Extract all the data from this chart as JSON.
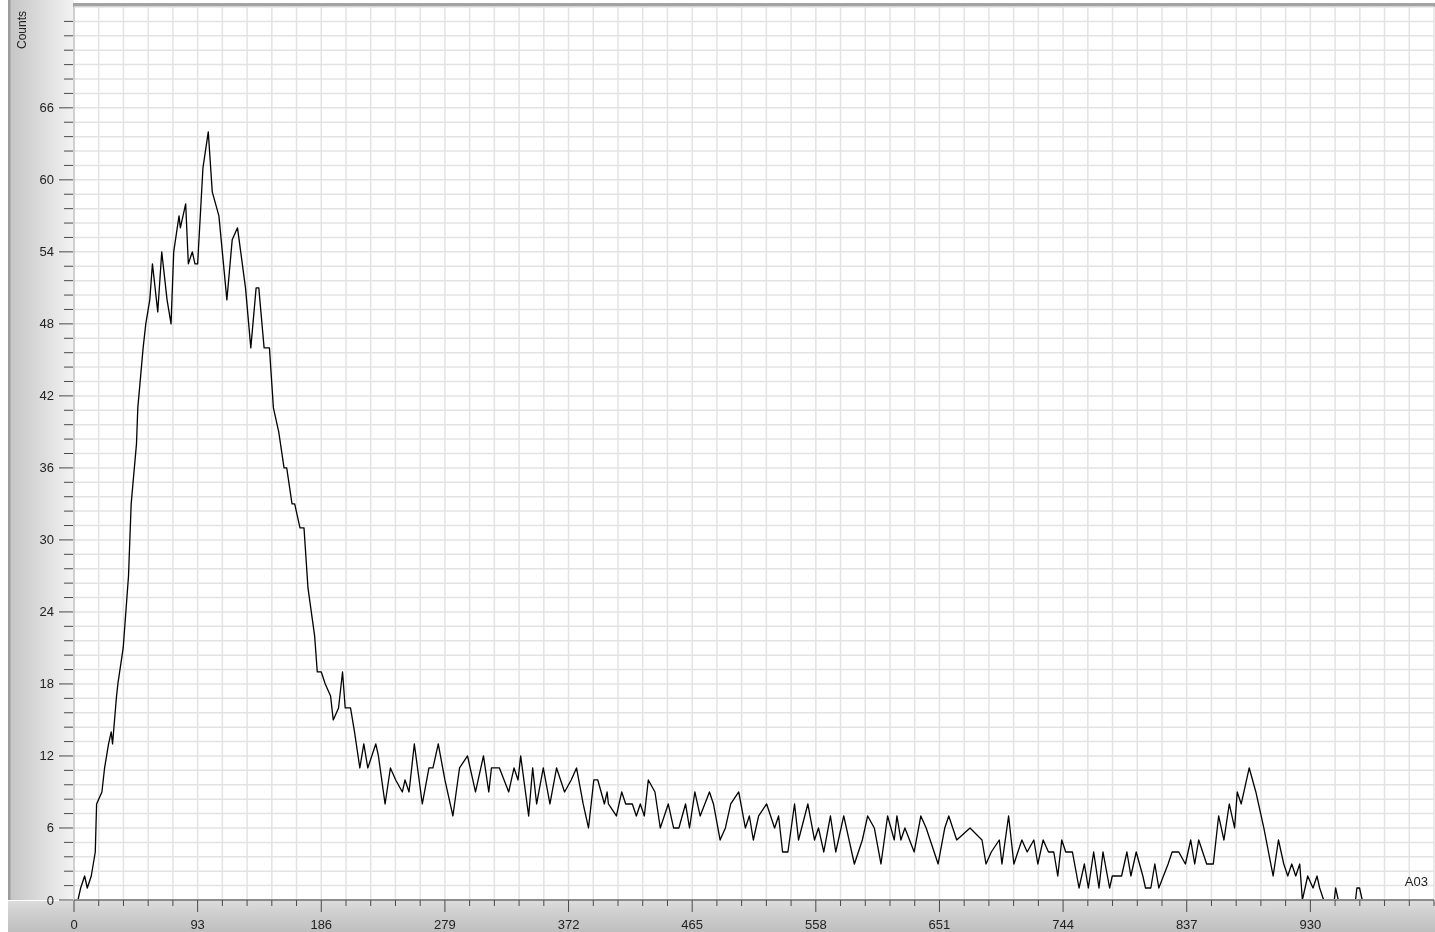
{
  "chart_data": {
    "type": "line",
    "ylabel": "Counts",
    "annotations": [
      "A03"
    ],
    "color": "#000000",
    "grid": true,
    "xlim": [
      0,
      1023
    ],
    "ylim": [
      0,
      74.4
    ],
    "xticks": [
      0,
      {
        "value": 18.6,
        "label": null
      },
      {
        "value": 37.2,
        "label": null
      },
      {
        "value": 55.8,
        "label": null
      },
      {
        "value": 74.4,
        "label": null
      },
      93,
      {
        "value": 111.6,
        "label": null
      },
      {
        "value": 130.2,
        "label": null
      },
      {
        "value": 148.8,
        "label": null
      },
      {
        "value": 167.4,
        "label": null
      },
      186,
      {
        "value": 204.6,
        "label": null
      },
      {
        "value": 223.2,
        "label": null
      },
      {
        "value": 241.8,
        "label": null
      },
      {
        "value": 260.4,
        "label": null
      },
      279,
      {
        "value": 297.6,
        "label": null
      },
      {
        "value": 316.2,
        "label": null
      },
      {
        "value": 334.8,
        "label": null
      },
      {
        "value": 353.4,
        "label": null
      },
      372,
      {
        "value": 390.6,
        "label": null
      },
      {
        "value": 409.2,
        "label": null
      },
      {
        "value": 427.8,
        "label": null
      },
      {
        "value": 446.4,
        "label": null
      },
      465,
      {
        "value": 483.6,
        "label": null
      },
      {
        "value": 502.2,
        "label": null
      },
      {
        "value": 520.8,
        "label": null
      },
      {
        "value": 539.4,
        "label": null
      },
      558,
      {
        "value": 576.6,
        "label": null
      },
      {
        "value": 595.2,
        "label": null
      },
      {
        "value": 613.8,
        "label": null
      },
      {
        "value": 632.4,
        "label": null
      },
      651,
      {
        "value": 669.6,
        "label": null
      },
      {
        "value": 688.2,
        "label": null
      },
      {
        "value": 706.8,
        "label": null
      },
      {
        "value": 725.4,
        "label": null
      },
      744,
      {
        "value": 762.6,
        "label": null
      },
      {
        "value": 781.2,
        "label": null
      },
      {
        "value": 799.8,
        "label": null
      },
      {
        "value": 818.4,
        "label": null
      },
      837,
      {
        "value": 855.6,
        "label": null
      },
      {
        "value": 874.2,
        "label": null
      },
      {
        "value": 892.8,
        "label": null
      },
      {
        "value": 911.4,
        "label": null
      },
      930,
      {
        "value": 948.6,
        "label": null
      },
      {
        "value": 967.2,
        "label": null
      },
      {
        "value": 985.8,
        "label": null
      },
      {
        "value": 1004.4,
        "label": null
      },
      {
        "value": 1023,
        "label": null
      }
    ],
    "yticks": [
      0,
      {
        "value": 1.2,
        "label": null
      },
      {
        "value": 2.4,
        "label": null
      },
      {
        "value": 3.6,
        "label": null
      },
      {
        "value": 4.8,
        "label": null
      },
      6,
      {
        "value": 7.2,
        "label": null
      },
      {
        "value": 8.4,
        "label": null
      },
      {
        "value": 9.6,
        "label": null
      },
      {
        "value": 10.8,
        "label": null
      },
      12,
      {
        "value": 13.2,
        "label": null
      },
      {
        "value": 14.4,
        "label": null
      },
      {
        "value": 15.6,
        "label": null
      },
      {
        "value": 16.8,
        "label": null
      },
      18,
      {
        "value": 19.2,
        "label": null
      },
      {
        "value": 20.4,
        "label": null
      },
      {
        "value": 21.6,
        "label": null
      },
      {
        "value": 22.8,
        "label": null
      },
      24,
      {
        "value": 25.2,
        "label": null
      },
      {
        "value": 26.4,
        "label": null
      },
      {
        "value": 27.6,
        "label": null
      },
      {
        "value": 28.8,
        "label": null
      },
      30,
      {
        "value": 31.2,
        "label": null
      },
      {
        "value": 32.4,
        "label": null
      },
      {
        "value": 33.6,
        "label": null
      },
      {
        "value": 34.8,
        "label": null
      },
      36,
      {
        "value": 37.2,
        "label": null
      },
      {
        "value": 38.4,
        "label": null
      },
      {
        "value": 39.6,
        "label": null
      },
      {
        "value": 40.8,
        "label": null
      },
      42,
      {
        "value": 43.2,
        "label": null
      },
      {
        "value": 44.4,
        "label": null
      },
      {
        "value": 45.6,
        "label": null
      },
      {
        "value": 46.8,
        "label": null
      },
      48,
      {
        "value": 49.2,
        "label": null
      },
      {
        "value": 50.4,
        "label": null
      },
      {
        "value": 51.6,
        "label": null
      },
      {
        "value": 52.8,
        "label": null
      },
      54,
      {
        "value": 55.2,
        "label": null
      },
      {
        "value": 56.4,
        "label": null
      },
      {
        "value": 57.6,
        "label": null
      },
      {
        "value": 58.8,
        "label": null
      },
      60,
      {
        "value": 61.2,
        "label": null
      },
      {
        "value": 62.4,
        "label": null
      },
      {
        "value": 63.6,
        "label": null
      },
      {
        "value": 64.8,
        "label": null
      },
      66,
      {
        "value": 67.2,
        "label": null
      },
      {
        "value": 68.4,
        "label": null
      },
      {
        "value": 69.6,
        "label": null
      },
      {
        "value": 70.8,
        "label": null
      },
      {
        "value": 72,
        "label": null
      },
      {
        "value": 73.2,
        "label": null
      }
    ],
    "x": [
      3,
      5,
      8,
      10,
      13,
      16,
      17,
      21,
      23,
      26,
      28,
      29,
      32,
      33,
      37,
      41,
      43,
      47,
      48,
      52,
      54,
      57,
      59,
      63,
      66,
      70,
      73,
      75,
      79,
      80,
      84,
      86,
      89,
      91,
      93,
      97,
      101,
      104,
      109,
      115,
      119,
      123,
      129,
      133,
      137,
      139,
      143,
      147,
      150,
      154,
      158,
      160,
      164,
      166,
      170,
      173,
      176,
      181,
      183,
      186,
      189,
      193,
      195,
      199,
      202,
      204,
      208,
      211,
      215,
      218,
      221,
      227,
      229,
      234,
      238,
      242,
      247,
      249,
      252,
      256,
      262,
      267,
      270,
      274,
      279,
      285,
      290,
      296,
      302,
      308,
      312,
      314,
      320,
      327,
      331,
      334,
      336,
      342,
      345,
      348,
      353,
      358,
      363,
      369,
      374,
      378,
      383,
      387,
      391,
      394,
      399,
      401,
      402,
      408,
      412,
      415,
      420,
      423,
      426,
      429,
      432,
      437,
      441,
      447,
      451,
      455,
      460,
      463,
      467,
      471,
      478,
      481,
      486,
      490,
      494,
      500,
      505,
      508,
      511,
      515,
      521,
      527,
      530,
      533,
      537,
      542,
      545,
      552,
      557,
      560,
      564,
      569,
      573,
      579,
      587,
      593,
      597,
      602,
      607,
      612,
      617,
      619,
      622,
      625,
      632,
      637,
      641,
      644,
      650,
      655,
      658,
      664,
      674,
      683,
      686,
      690,
      696,
      698,
      703,
      707,
      713,
      717,
      722,
      725,
      729,
      733,
      737,
      740,
      743,
      746,
      751,
      756,
      760,
      763,
      767,
      771,
      774,
      779,
      781,
      788,
      792,
      795,
      799,
      804,
      806,
      810,
      813,
      816,
      823,
      826,
      831,
      836,
      840,
      843,
      846,
      852,
      857,
      861,
      865,
      869,
      873,
      875,
      878,
      884,
      889,
      895,
      902,
      906,
      910,
      913,
      916,
      919,
      922,
      924,
      928,
      932,
      935,
      937,
      940,
      948,
      949,
      951,
      964,
      965,
      967,
      969
    ],
    "values": [
      0,
      1,
      2,
      1,
      2,
      4,
      8,
      9,
      11,
      13,
      14,
      13,
      17,
      18,
      21,
      27,
      33,
      38,
      41,
      46,
      48,
      50,
      53,
      49,
      54,
      50,
      48,
      54,
      57,
      56,
      58,
      53,
      54,
      53,
      53,
      61,
      64,
      59,
      57,
      50,
      55,
      56,
      51,
      46,
      51,
      51,
      46,
      46,
      41,
      39,
      36,
      36,
      33,
      33,
      31,
      31,
      26,
      22,
      19,
      19,
      18,
      17,
      15,
      16,
      19,
      16,
      16,
      14,
      11,
      13,
      11,
      13,
      12,
      8,
      11,
      10,
      9,
      10,
      9,
      13,
      8,
      11,
      11,
      13,
      10,
      7,
      11,
      12,
      9,
      12,
      9,
      11,
      11,
      9,
      11,
      10,
      12,
      7,
      11,
      8,
      11,
      8,
      11,
      9,
      10,
      11,
      8,
      6,
      10,
      10,
      8,
      9,
      8,
      7,
      9,
      8,
      8,
      7,
      8,
      7,
      10,
      9,
      6,
      8,
      6,
      6,
      8,
      6,
      9,
      7,
      9,
      8,
      5,
      6,
      8,
      9,
      6,
      7,
      5,
      7,
      8,
      6,
      7,
      4,
      4,
      8,
      5,
      8,
      5,
      6,
      4,
      7,
      4,
      7,
      3,
      5,
      7,
      6,
      3,
      7,
      5,
      7,
      5,
      6,
      4,
      7,
      6,
      5,
      3,
      6,
      7,
      5,
      6,
      5,
      3,
      4,
      5,
      3,
      7,
      3,
      5,
      4,
      5,
      3,
      5,
      4,
      4,
      2,
      5,
      4,
      4,
      1,
      3,
      1,
      4,
      1,
      4,
      1,
      2,
      2,
      4,
      2,
      4,
      2,
      1,
      1,
      3,
      1,
      3,
      4,
      4,
      3,
      5,
      3,
      5,
      3,
      3,
      7,
      5,
      8,
      6,
      9,
      8,
      11,
      9,
      6,
      2,
      5,
      3,
      2,
      3,
      2,
      3,
      0,
      2,
      1,
      2,
      1,
      0,
      0,
      1,
      0,
      0,
      1,
      1,
      0
    ]
  }
}
